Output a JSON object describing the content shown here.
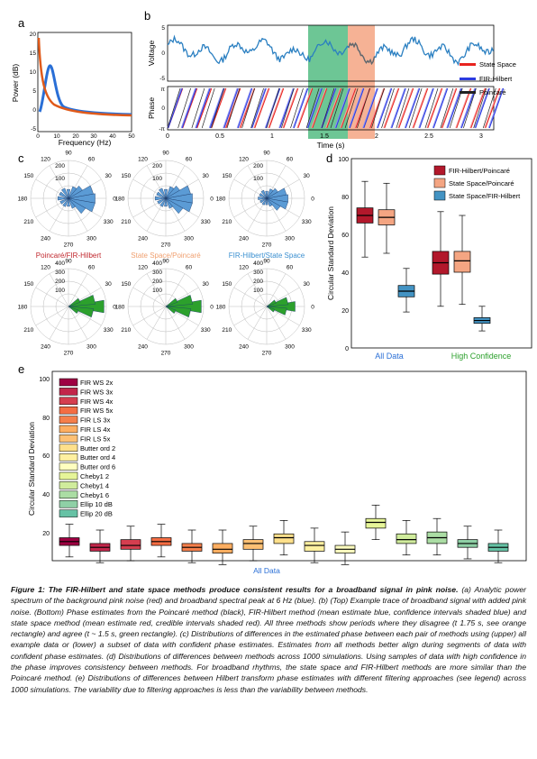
{
  "panel_labels": {
    "a": "a",
    "b": "b",
    "c": "c",
    "d": "d",
    "e": "e"
  },
  "panel_a": {
    "ylabel": "Power (dB)",
    "xlabel": "Frequency (Hz)",
    "yticks": [
      "20",
      "15",
      "10",
      "5",
      "0",
      "-5"
    ],
    "xticks": [
      "0",
      "10",
      "20",
      "30",
      "40",
      "50"
    ],
    "colors": {
      "noise": "#e05a1a",
      "peak": "#2a6fd6"
    }
  },
  "panel_b": {
    "voltage_label": "Voltage",
    "phase_label": "Phase",
    "voltage_ticks": [
      "5",
      "0",
      "-5"
    ],
    "phase_ticks": [
      "π",
      "0",
      "-π"
    ],
    "xlabel": "Time (s)",
    "xticks": [
      "0",
      "0.5",
      "1",
      "1.5",
      "2",
      "2.5",
      "3"
    ],
    "legend": [
      "State Space",
      "FIR-Hilbert",
      "Poincaré"
    ],
    "legend_colors": [
      "#e8231f",
      "#2b3be0",
      "#222222"
    ],
    "highlight_colors": {
      "agree": "#3cb371",
      "disagree": "#f4a582"
    }
  },
  "panel_c": {
    "angle_labels": [
      "90",
      "60",
      "30",
      "0",
      "330",
      "300",
      "270",
      "240",
      "210",
      "180",
      "150",
      "120"
    ],
    "radius_labels_top": [
      "100",
      "200"
    ],
    "radius_labels_bottom": [
      "100",
      "200",
      "300",
      "400"
    ],
    "titles": [
      "Poincaré/FIR-Hilbert",
      "State Space/Poincaré",
      "FIR-Hilbert/State Space"
    ],
    "title_colors": [
      "#c0272d",
      "#f0a070",
      "#3a8fd0"
    ],
    "colors": {
      "all": "#5b9bd5",
      "confident": "#2ca02c"
    }
  },
  "panel_d": {
    "ylabel": "Circular Standard Deviation",
    "yticks": [
      "100",
      "80",
      "60",
      "40",
      "20",
      "0"
    ],
    "groups": [
      "All Data",
      "High Confidence"
    ],
    "group_colors": [
      "#2a6fd6",
      "#2ca02c"
    ],
    "legend": [
      "FIR-Hilbert/Poincaré",
      "State Space/Poincaré",
      "State Space/FIR-Hilbert"
    ],
    "legend_colors": [
      "#b2182b",
      "#f4a582",
      "#4393c3"
    ]
  },
  "panel_e": {
    "ylabel": "Circular Standard Deviation",
    "yticks": [
      "100",
      "80",
      "60",
      "40",
      "20"
    ],
    "xlabel": "All Data",
    "legend": [
      "FIR WS 2x",
      "FIR WS 3x",
      "FIR WS 4x",
      "FIR WS 5x",
      "FIR LS 3x",
      "FIR LS 4x",
      "FIR LS 5x",
      "Butter ord 2",
      "Butter ord 4",
      "Butter ord 6",
      "Cheby1 2",
      "Cheby1 4",
      "Cheby1 6",
      "Ellip 10 dB",
      "Ellip 20 dB"
    ],
    "legend_colors": [
      "#9e0142",
      "#c2264a",
      "#d53e4f",
      "#f46d43",
      "#f57f4b",
      "#fdae61",
      "#fdc074",
      "#fee08b",
      "#fff0a0",
      "#ffffbf",
      "#e6f598",
      "#d0ec9c",
      "#abdda4",
      "#8fd0a6",
      "#66c2a5"
    ]
  },
  "caption": {
    "title": "Figure 1: The FIR-Hilbert and state space methods produce consistent results for a broadband signal in pink noise.",
    "body": " (a) Analytic power spectrum of the background pink noise (red) and broadband spectral peak at 6 Hz (blue). (b) (Top) Example trace of broadband signal with added pink noise. (Bottom) Phase estimates from the Poincaré method (black), FIR-Hilbert method (mean estimate blue, confidence intervals shaded blue) and state space method (mean estimate red, credible intervals shaded red). All three methods show periods where they disagree (t   1.75 s, see orange rectangle) and agree (t ~ 1.5 s, green rectangle). (c) Distributions of differences in the estimated phase between each pair of methods using (upper) all example data or (lower) a subset of data with confident phase estimates. Estimates from all methods better align during segments of data with confident phase estimates. (d) Distributions of differences between methods across 1000 simulations. Using samples of data with high confidence in the phase improves consistency between methods. For broadband rhythms, the state space and FIR-Hilbert methods are more similar than the Poincaré method. (e) Distributions of differences between Hilbert transform phase estimates with different filtering approaches (see legend) across 1000 simulations. The variability due to filtering approaches is less than the variability between methods."
  }
}
